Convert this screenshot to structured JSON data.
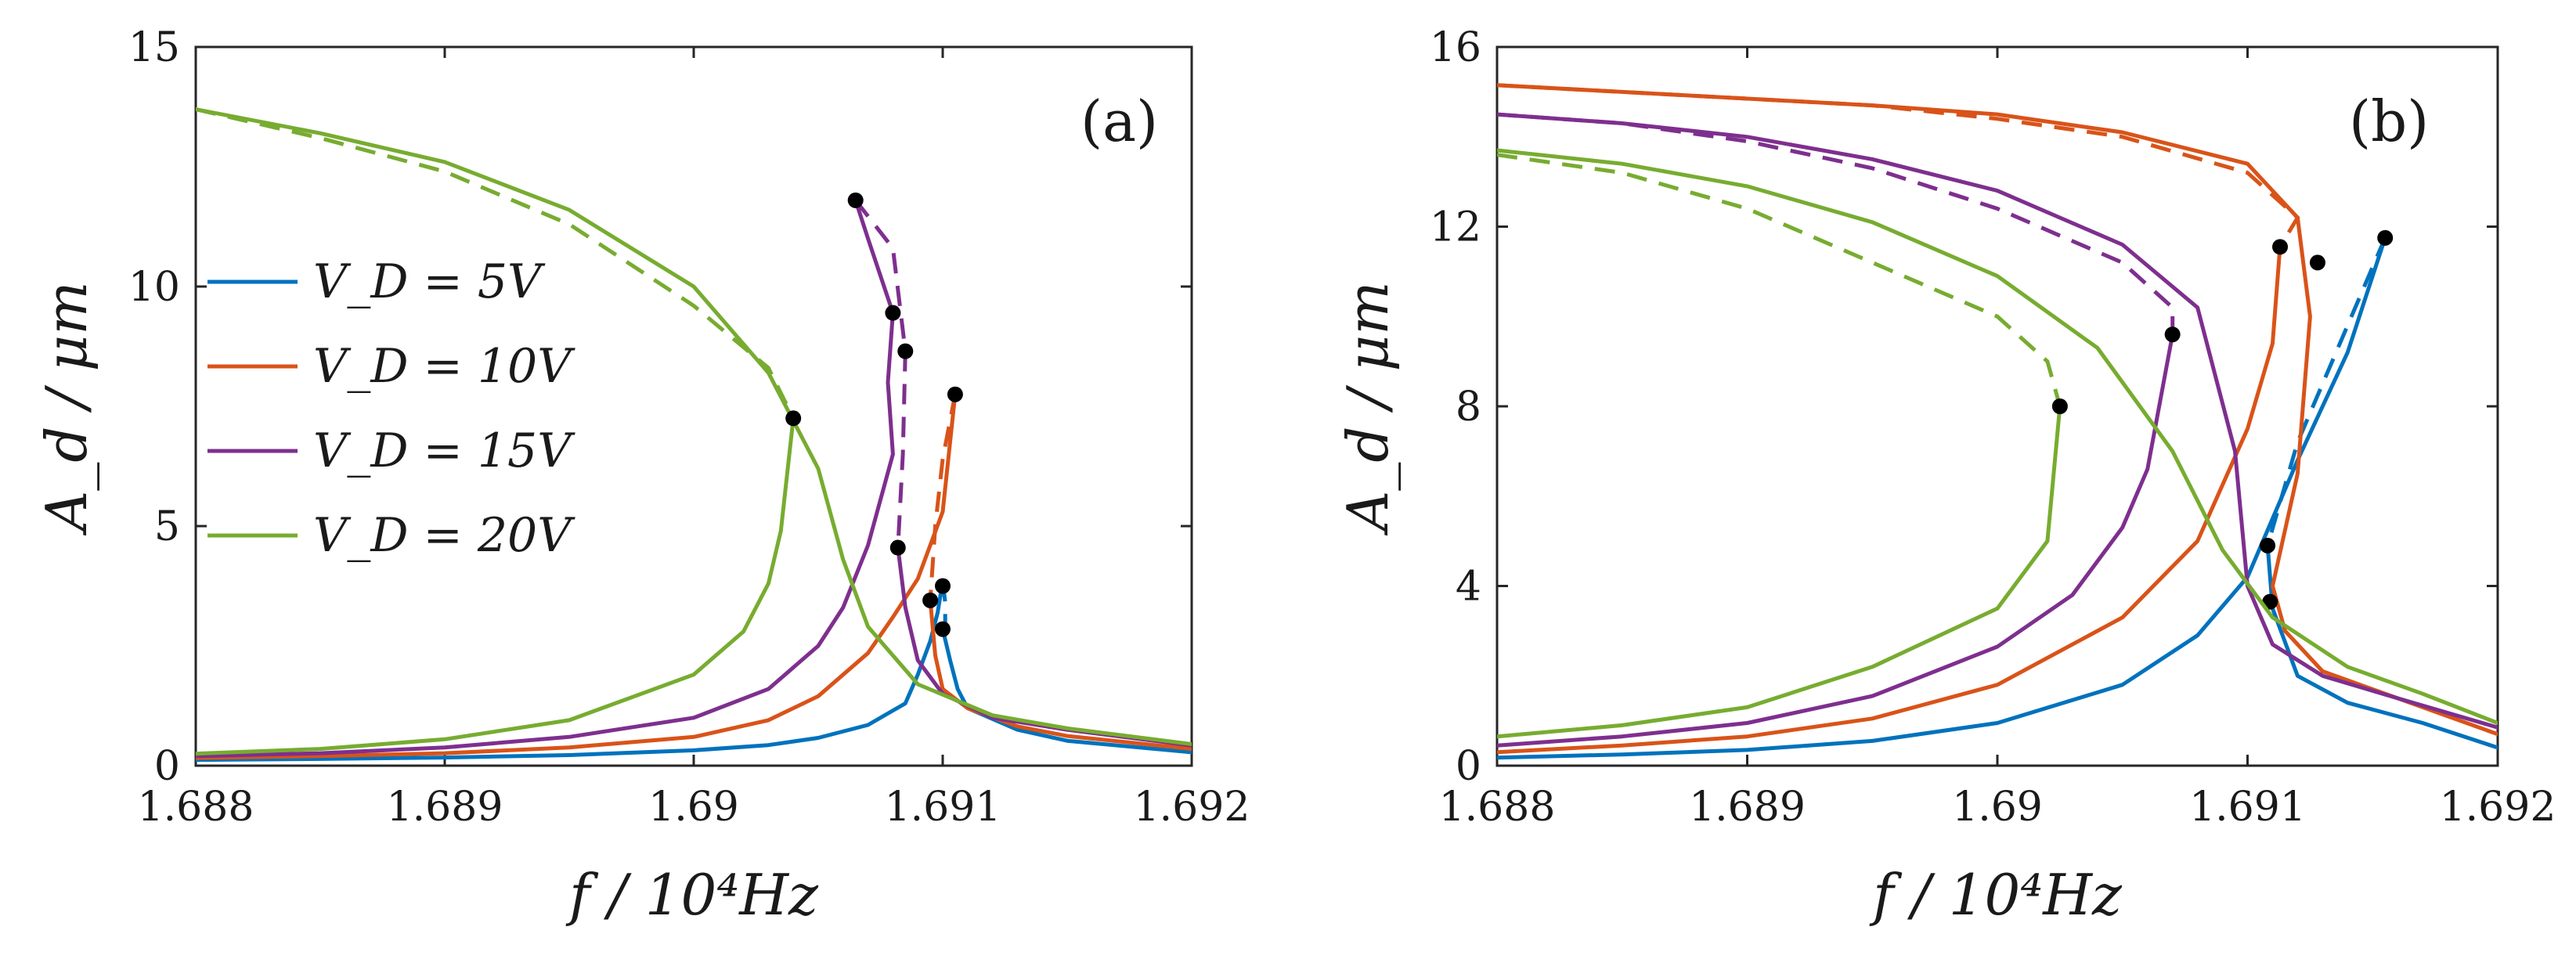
{
  "chart_data": [
    {
      "panel": "(a)",
      "type": "line",
      "xlabel": "f / 10⁴Hz",
      "ylabel": "A_d / μm",
      "xlim": [
        1.688,
        1.692
      ],
      "ylim": [
        0,
        15
      ],
      "xticks": [
        1.688,
        1.689,
        1.69,
        1.691,
        1.692
      ],
      "xtick_labels": [
        "1.688",
        "1.689",
        "1.69",
        "1.691",
        "1.692"
      ],
      "yticks": [
        0,
        5,
        10,
        15
      ],
      "ytick_labels": [
        "0",
        "5",
        "10",
        "15"
      ],
      "legend": {
        "placement": "middle-left",
        "entries": [
          "V_D = 5V",
          "V_D = 10V",
          "V_D = 15V",
          "V_D = 20V"
        ]
      },
      "series": [
        {
          "name": "V_D = 5V",
          "color": "#0072BD",
          "solid": [
            [
              1.688,
              0.12
            ],
            [
              1.6885,
              0.14
            ],
            [
              1.689,
              0.17
            ],
            [
              1.6895,
              0.22
            ],
            [
              1.69,
              0.32
            ],
            [
              1.6903,
              0.43
            ],
            [
              1.6905,
              0.58
            ],
            [
              1.6907,
              0.85
            ],
            [
              1.69085,
              1.3
            ],
            [
              1.6909,
              1.9
            ],
            [
              1.69095,
              2.6
            ],
            [
              1.69098,
              3.2
            ],
            [
              1.691,
              3.85
            ]
          ],
          "solid_upper": [
            [
              1.691,
              2.85
            ],
            [
              1.69103,
              2.2
            ],
            [
              1.69106,
              1.6
            ],
            [
              1.6911,
              1.2
            ],
            [
              1.6913,
              0.75
            ],
            [
              1.6915,
              0.52
            ],
            [
              1.692,
              0.28
            ]
          ],
          "dashed": [
            [
              1.691,
              3.85
            ],
            [
              1.69101,
              3.4
            ],
            [
              1.69101,
              2.85
            ]
          ],
          "markers": [
            [
              1.691,
              3.75
            ],
            [
              1.691,
              2.85
            ]
          ]
        },
        {
          "name": "V_D = 10V",
          "color": "#D95319",
          "solid": [
            [
              1.688,
              0.16
            ],
            [
              1.6885,
              0.2
            ],
            [
              1.689,
              0.26
            ],
            [
              1.6895,
              0.38
            ],
            [
              1.69,
              0.6
            ],
            [
              1.6903,
              0.95
            ],
            [
              1.6905,
              1.45
            ],
            [
              1.6907,
              2.35
            ],
            [
              1.6908,
              3.1
            ],
            [
              1.6909,
              3.9
            ],
            [
              1.691,
              5.3
            ],
            [
              1.69105,
              7.75
            ]
          ],
          "solid_upper": [
            [
              1.69095,
              3.45
            ],
            [
              1.69097,
              2.3
            ],
            [
              1.691,
              1.6
            ],
            [
              1.6911,
              1.2
            ],
            [
              1.6913,
              0.82
            ],
            [
              1.6915,
              0.62
            ],
            [
              1.692,
              0.35
            ]
          ],
          "dashed": [
            [
              1.69105,
              7.75
            ],
            [
              1.691,
              6.4
            ],
            [
              1.69097,
              5.0
            ],
            [
              1.69095,
              3.45
            ]
          ],
          "markers": [
            [
              1.69105,
              7.75
            ],
            [
              1.69095,
              3.45
            ]
          ]
        },
        {
          "name": "V_D = 15V",
          "color": "#7E2F8E",
          "solid": [
            [
              1.688,
              0.2
            ],
            [
              1.6885,
              0.26
            ],
            [
              1.689,
              0.38
            ],
            [
              1.6895,
              0.6
            ],
            [
              1.69,
              1.0
            ],
            [
              1.6903,
              1.6
            ],
            [
              1.6905,
              2.5
            ],
            [
              1.6906,
              3.3
            ],
            [
              1.6907,
              4.6
            ],
            [
              1.6908,
              6.5
            ],
            [
              1.69078,
              8.0
            ],
            [
              1.6908,
              9.45
            ],
            [
              1.6907,
              11.0
            ],
            [
              1.69065,
              11.8
            ]
          ],
          "solid_upper": [
            [
              1.69082,
              4.55
            ],
            [
              1.69085,
              3.3
            ],
            [
              1.6909,
              2.2
            ],
            [
              1.691,
              1.5
            ],
            [
              1.6912,
              1.0
            ],
            [
              1.6915,
              0.75
            ],
            [
              1.692,
              0.42
            ]
          ],
          "dashed": [
            [
              1.69065,
              11.8
            ],
            [
              1.6908,
              10.8
            ],
            [
              1.69085,
              8.65
            ],
            [
              1.69084,
              6.5
            ],
            [
              1.69082,
              4.55
            ]
          ],
          "markers": [
            [
              1.69065,
              11.8
            ],
            [
              1.6908,
              9.45
            ],
            [
              1.69085,
              8.65
            ],
            [
              1.69082,
              4.55
            ]
          ]
        },
        {
          "name": "V_D = 20V",
          "color": "#77AC30",
          "solid": [
            [
              1.688,
              0.25
            ],
            [
              1.6885,
              0.35
            ],
            [
              1.689,
              0.55
            ],
            [
              1.6895,
              0.95
            ],
            [
              1.69,
              1.9
            ],
            [
              1.6902,
              2.8
            ],
            [
              1.6903,
              3.8
            ],
            [
              1.69035,
              4.9
            ],
            [
              1.6904,
              7.25
            ]
          ],
          "solid_upper": [
            [
              1.688,
              13.7
            ],
            [
              1.6885,
              13.2
            ],
            [
              1.689,
              12.6
            ],
            [
              1.6895,
              11.6
            ],
            [
              1.69,
              10.0
            ],
            [
              1.6903,
              8.2
            ],
            [
              1.6905,
              6.2
            ],
            [
              1.6906,
              4.3
            ],
            [
              1.6907,
              2.9
            ],
            [
              1.6909,
              1.7
            ],
            [
              1.6912,
              1.05
            ],
            [
              1.6915,
              0.78
            ],
            [
              1.692,
              0.45
            ]
          ],
          "dashed": [
            [
              1.688,
              13.7
            ],
            [
              1.6885,
              13.1
            ],
            [
              1.689,
              12.4
            ],
            [
              1.6895,
              11.3
            ],
            [
              1.69,
              9.6
            ],
            [
              1.6903,
              8.3
            ],
            [
              1.6904,
              7.25
            ]
          ],
          "markers": [
            [
              1.6904,
              7.25
            ]
          ]
        }
      ]
    },
    {
      "panel": "(b)",
      "type": "line",
      "xlabel": "f / 10⁴Hz",
      "ylabel": "A_d / μm",
      "xlim": [
        1.688,
        1.692
      ],
      "ylim": [
        0,
        16
      ],
      "xticks": [
        1.688,
        1.689,
        1.69,
        1.691,
        1.692
      ],
      "xtick_labels": [
        "1.688",
        "1.689",
        "1.69",
        "1.691",
        "1.692"
      ],
      "yticks": [
        0,
        4,
        8,
        12,
        16
      ],
      "ytick_labels": [
        "0",
        "4",
        "8",
        "12",
        "16"
      ],
      "series": [
        {
          "name": "V_D = 5V",
          "color": "#0072BD",
          "solid": [
            [
              1.688,
              0.18
            ],
            [
              1.6885,
              0.25
            ],
            [
              1.689,
              0.35
            ],
            [
              1.6895,
              0.55
            ],
            [
              1.69,
              0.95
            ],
            [
              1.6905,
              1.8
            ],
            [
              1.6908,
              2.9
            ],
            [
              1.691,
              4.2
            ],
            [
              1.6912,
              6.8
            ],
            [
              1.6914,
              9.2
            ],
            [
              1.69155,
              11.75
            ]
          ],
          "solid_upper": [
            [
              1.69108,
              4.9
            ],
            [
              1.6911,
              3.5
            ],
            [
              1.6912,
              2.0
            ],
            [
              1.6914,
              1.4
            ],
            [
              1.6917,
              0.95
            ],
            [
              1.692,
              0.4
            ]
          ],
          "dashed": [
            [
              1.69155,
              11.75
            ],
            [
              1.6914,
              9.8
            ],
            [
              1.6912,
              7.2
            ],
            [
              1.69108,
              4.9
            ]
          ],
          "markers": [
            [
              1.69155,
              11.75
            ],
            [
              1.69108,
              4.9
            ]
          ]
        },
        {
          "name": "V_D = 10V",
          "color": "#D95319",
          "solid": [
            [
              1.688,
              0.3
            ],
            [
              1.6885,
              0.45
            ],
            [
              1.689,
              0.65
            ],
            [
              1.6895,
              1.05
            ],
            [
              1.69,
              1.8
            ],
            [
              1.6905,
              3.3
            ],
            [
              1.6908,
              5.0
            ],
            [
              1.691,
              7.5
            ],
            [
              1.6911,
              9.4
            ],
            [
              1.69113,
              11.55
            ]
          ],
          "solid_upper": [
            [
              1.688,
              15.15
            ],
            [
              1.6885,
              15.0
            ],
            [
              1.689,
              14.85
            ],
            [
              1.6895,
              14.7
            ],
            [
              1.69,
              14.5
            ],
            [
              1.6905,
              14.1
            ],
            [
              1.691,
              13.4
            ],
            [
              1.6912,
              12.2
            ],
            [
              1.69125,
              10.0
            ],
            [
              1.6912,
              6.5
            ],
            [
              1.6911,
              4.0
            ],
            [
              1.69115,
              3.0
            ],
            [
              1.6913,
              2.1
            ],
            [
              1.6916,
              1.5
            ],
            [
              1.692,
              0.7
            ]
          ],
          "dashed": [
            [
              1.688,
              15.15
            ],
            [
              1.6885,
              15.0
            ],
            [
              1.689,
              14.85
            ],
            [
              1.6895,
              14.7
            ],
            [
              1.69,
              14.4
            ],
            [
              1.6905,
              14.0
            ],
            [
              1.691,
              13.2
            ],
            [
              1.6912,
              12.2
            ],
            [
              1.69113,
              11.55
            ]
          ],
          "markers": [
            [
              1.69113,
              11.55
            ],
            [
              1.69128,
              11.2
            ],
            [
              1.69109,
              3.65
            ]
          ]
        },
        {
          "name": "V_D = 15V",
          "color": "#7E2F8E",
          "solid": [
            [
              1.688,
              0.45
            ],
            [
              1.6885,
              0.65
            ],
            [
              1.689,
              0.95
            ],
            [
              1.6895,
              1.55
            ],
            [
              1.69,
              2.65
            ],
            [
              1.6903,
              3.8
            ],
            [
              1.6905,
              5.3
            ],
            [
              1.6906,
              6.6
            ],
            [
              1.6907,
              9.6
            ]
          ],
          "solid_upper": [
            [
              1.688,
              14.5
            ],
            [
              1.6885,
              14.3
            ],
            [
              1.689,
              14.0
            ],
            [
              1.6895,
              13.5
            ],
            [
              1.69,
              12.8
            ],
            [
              1.6905,
              11.6
            ],
            [
              1.6908,
              10.2
            ],
            [
              1.69095,
              7.0
            ],
            [
              1.691,
              4.0
            ],
            [
              1.6911,
              2.7
            ],
            [
              1.6913,
              2.0
            ],
            [
              1.6916,
              1.5
            ],
            [
              1.692,
              0.85
            ]
          ],
          "dashed": [
            [
              1.688,
              14.5
            ],
            [
              1.6885,
              14.3
            ],
            [
              1.689,
              13.9
            ],
            [
              1.6895,
              13.3
            ],
            [
              1.69,
              12.4
            ],
            [
              1.6905,
              11.2
            ],
            [
              1.6907,
              10.2
            ],
            [
              1.6907,
              9.6
            ]
          ],
          "markers": [
            [
              1.6907,
              9.6
            ]
          ]
        },
        {
          "name": "V_D = 20V",
          "color": "#77AC30",
          "solid": [
            [
              1.688,
              0.65
            ],
            [
              1.6885,
              0.9
            ],
            [
              1.689,
              1.3
            ],
            [
              1.6895,
              2.2
            ],
            [
              1.69,
              3.5
            ],
            [
              1.6902,
              5.0
            ],
            [
              1.69025,
              8.0
            ]
          ],
          "solid_upper": [
            [
              1.688,
              13.7
            ],
            [
              1.6885,
              13.4
            ],
            [
              1.689,
              12.9
            ],
            [
              1.6895,
              12.1
            ],
            [
              1.69,
              10.9
            ],
            [
              1.6904,
              9.3
            ],
            [
              1.6907,
              7.0
            ],
            [
              1.6909,
              4.8
            ],
            [
              1.6911,
              3.3
            ],
            [
              1.6914,
              2.2
            ],
            [
              1.6917,
              1.6
            ],
            [
              1.692,
              0.95
            ]
          ],
          "dashed": [
            [
              1.688,
              13.6
            ],
            [
              1.6885,
              13.2
            ],
            [
              1.689,
              12.4
            ],
            [
              1.6895,
              11.2
            ],
            [
              1.69,
              10.0
            ],
            [
              1.6902,
              9.0
            ],
            [
              1.69025,
              8.0
            ]
          ],
          "markers": [
            [
              1.69025,
              8.0
            ]
          ]
        }
      ]
    }
  ]
}
